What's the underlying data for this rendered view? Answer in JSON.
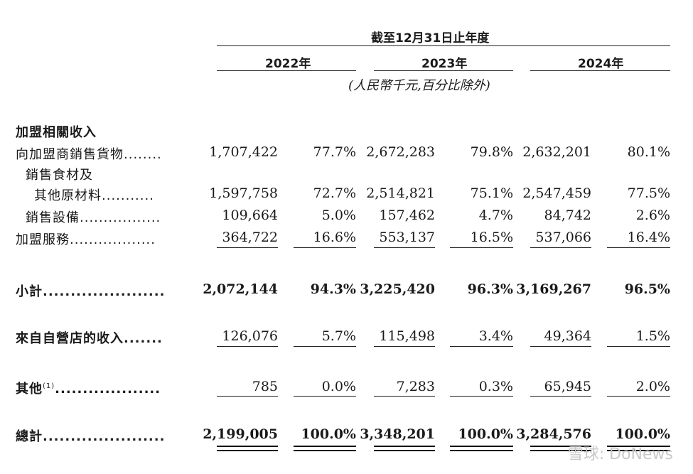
{
  "header": {
    "period": "截至12月31日止年度",
    "years": [
      "2022年",
      "2023年",
      "2024年"
    ],
    "unit": "(人民幣千元,百分比除外)"
  },
  "section_title": "加盟相關收入",
  "rows": [
    {
      "label": "向加盟商銷售貨物",
      "dots": "........",
      "v": [
        "1,707,422",
        "77.7%",
        "2,672,283",
        "79.8%",
        "2,632,201",
        "80.1%"
      ]
    },
    {
      "label": "銷售食材及",
      "dots": "",
      "v": []
    },
    {
      "label": "其他原材料",
      "dots": "...........",
      "v": [
        "1,597,758",
        "72.7%",
        "2,514,821",
        "75.1%",
        "2,547,459",
        "77.5%"
      ]
    },
    {
      "label": "銷售設備",
      "dots": ".................",
      "v": [
        "109,664",
        "5.0%",
        "157,462",
        "4.7%",
        "84,742",
        "2.6%"
      ]
    },
    {
      "label": "加盟服務",
      "dots": "..................",
      "v": [
        "364,722",
        "16.6%",
        "553,137",
        "16.5%",
        "537,066",
        "16.4%"
      ]
    },
    {
      "label": "小計",
      "dots": "......................",
      "v": [
        "2,072,144",
        "94.3%",
        "3,225,420",
        "96.3%",
        "3,169,267",
        "96.5%"
      ]
    },
    {
      "label": "來自自營店的收入",
      "dots": ".......",
      "v": [
        "126,076",
        "5.7%",
        "115,498",
        "3.4%",
        "49,364",
        "1.5%"
      ]
    },
    {
      "label": "其他",
      "sup": "(1)",
      "dots": "...................",
      "v": [
        "785",
        "0.0%",
        "7,283",
        "0.3%",
        "65,945",
        "2.0%"
      ]
    },
    {
      "label": "總計",
      "dots": "......................",
      "v": [
        "2,199,005",
        "100.0%",
        "3,348,201",
        "100.0%",
        "3,284,576",
        "100.0%"
      ]
    }
  ],
  "watermark": "雪球: DoNews"
}
